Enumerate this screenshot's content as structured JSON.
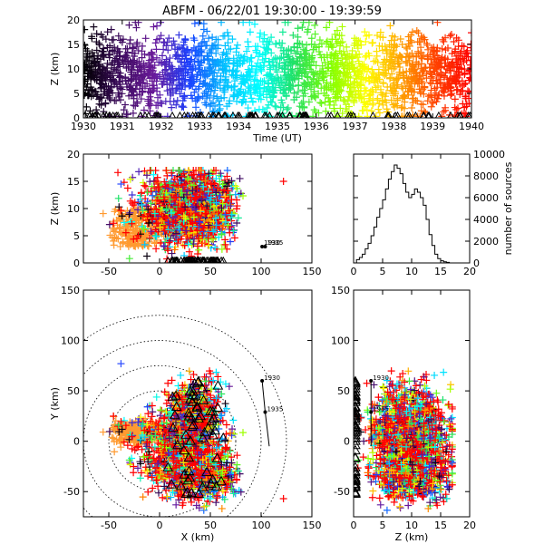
{
  "title": "ABFM - 06/22/01 19:30:00 - 19:39:59",
  "colors": {
    "source_gradient": [
      "#000000",
      "#3a0a5a",
      "#6a1a9a",
      "#1a40ff",
      "#00c0ff",
      "#00ffff",
      "#20e060",
      "#80ff00",
      "#ffff00",
      "#ffa000",
      "#ff4000",
      "#ff0000"
    ],
    "late_sources": "#ff0000",
    "mid_sources": "#ff9a30",
    "stations": "#000000",
    "histogram": "#000000"
  },
  "markers": {
    "source": "plus",
    "station": "triangle"
  },
  "chart_data": [
    {
      "id": "time_height",
      "type": "scatter",
      "xlabel": "Time (UT)",
      "ylabel": "Z (km)",
      "xlim": [
        1930,
        1940
      ],
      "ylim": [
        0,
        20
      ],
      "xticks": [
        1930,
        1931,
        1932,
        1933,
        1934,
        1935,
        1936,
        1937,
        1938,
        1939,
        1940
      ],
      "yticks": [
        0,
        5,
        10,
        15,
        20
      ],
      "note": "sources colored by time from 1930 (black) to 1940 (red); dense band 2-18 km"
    },
    {
      "id": "xz_projection",
      "type": "scatter",
      "xlabel": "",
      "ylabel": "Z (km)",
      "xlim": [
        -75,
        150
      ],
      "ylim": [
        0,
        20
      ],
      "xticks": [
        -50,
        0,
        50,
        100,
        150
      ],
      "yticks": [
        0,
        5,
        10,
        15,
        20
      ],
      "labels": [
        {
          "text": "1930",
          "x": 101,
          "z": 3
        },
        {
          "text": "1935",
          "x": 104,
          "z": 3
        }
      ]
    },
    {
      "id": "height_histogram",
      "type": "bar",
      "xlabel": "",
      "ylabel": "number of sources",
      "xlim": [
        0,
        20
      ],
      "ylim": [
        0,
        10000
      ],
      "xticks": [
        0,
        5,
        10,
        15,
        20
      ],
      "yticks": [
        0,
        2000,
        4000,
        6000,
        8000,
        10000
      ],
      "x": [
        0,
        0.5,
        1,
        1.5,
        2,
        2.5,
        3,
        3.5,
        4,
        4.5,
        5,
        5.5,
        6,
        6.5,
        7,
        7.5,
        8,
        8.5,
        9,
        9.5,
        10,
        10.5,
        11,
        11.5,
        12,
        12.5,
        13,
        13.5,
        14,
        14.5,
        15,
        15.5,
        16,
        16.5,
        17,
        17.5,
        18,
        18.5,
        19,
        19.5
      ],
      "values": [
        0,
        300,
        500,
        800,
        1300,
        1800,
        2500,
        3300,
        4200,
        5000,
        5800,
        6800,
        7700,
        8400,
        9000,
        8700,
        8200,
        7300,
        6500,
        6000,
        6300,
        6800,
        6500,
        6000,
        5300,
        4000,
        2600,
        1600,
        800,
        400,
        200,
        100,
        50,
        0,
        0,
        0,
        0,
        0,
        0,
        0
      ]
    },
    {
      "id": "plan_view",
      "type": "scatter",
      "xlabel": "X (km)",
      "ylabel": "Y (km)",
      "xlim": [
        -75,
        150
      ],
      "ylim": [
        -75,
        150
      ],
      "xticks": [
        -50,
        0,
        50,
        100,
        150
      ],
      "yticks": [
        -50,
        0,
        50,
        100,
        150
      ],
      "range_rings_km": [
        25,
        50,
        75,
        100,
        125
      ],
      "track": [
        {
          "label": "1930",
          "x": 101,
          "y": 60
        },
        {
          "label": "1935",
          "x": 104,
          "y": 29
        }
      ],
      "track_end": {
        "x": 108,
        "y": -5
      }
    },
    {
      "id": "yz_projection",
      "type": "scatter",
      "xlabel": "Z (km)",
      "ylabel": "",
      "xlim": [
        0,
        20
      ],
      "ylim": [
        -75,
        150
      ],
      "xticks": [
        0,
        5,
        10,
        15,
        20
      ],
      "yticks": [
        -50,
        0,
        50,
        100,
        150
      ],
      "labels": [
        {
          "text": "1930",
          "z": 3,
          "y": 60
        },
        {
          "text": "1935",
          "z": 3,
          "y": 29
        }
      ]
    }
  ]
}
